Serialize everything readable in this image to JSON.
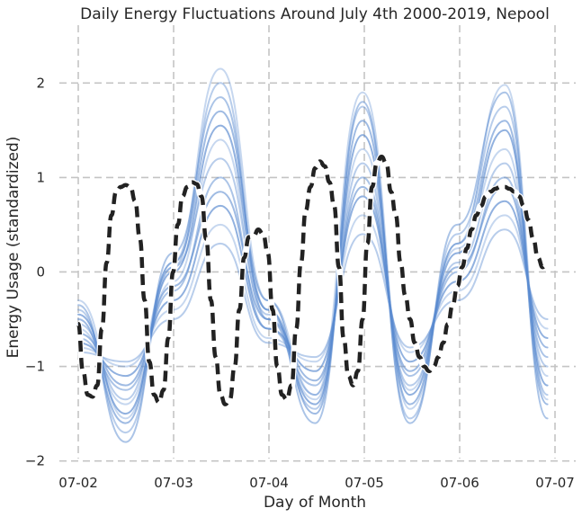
{
  "chart_data": {
    "type": "line",
    "title": "Daily Energy Fluctuations Around July 4th 2000-2019, Nepool",
    "xlabel": "Day of Month",
    "ylabel": "Energy Usage (standardized)",
    "xticks": [
      "07-02",
      "07-03",
      "07-04",
      "07-05",
      "07-06",
      "07-07"
    ],
    "yticks": [
      2,
      1,
      0,
      -1,
      -2
    ],
    "xlim": [
      0,
      5.03
    ],
    "ylim": [
      -2.07,
      2.65
    ],
    "grid": true,
    "colors": {
      "series": "#5b8bd0",
      "mean": "#222222",
      "grid": "#c4c4c4",
      "text": "#262626"
    },
    "mean_series": {
      "style": "dashed",
      "x": [
        0,
        0.05,
        0.1,
        0.15,
        0.2,
        0.25,
        0.3,
        0.35,
        0.4,
        0.45,
        0.5,
        0.55,
        0.6,
        0.65,
        0.7,
        0.75,
        0.8,
        0.85,
        0.9,
        0.95,
        1,
        1.05,
        1.1,
        1.15,
        1.2,
        1.25,
        1.3,
        1.35,
        1.4,
        1.45,
        1.5,
        1.55,
        1.6,
        1.65,
        1.7,
        1.75,
        1.8,
        1.85,
        1.9,
        1.95,
        2,
        2.05,
        2.1,
        2.15,
        2.2,
        2.25,
        2.3,
        2.35,
        2.4,
        2.45,
        2.5,
        2.55,
        2.6,
        2.65,
        2.7,
        2.75,
        2.8,
        2.85,
        2.9,
        2.95,
        3,
        3.05,
        3.1,
        3.15,
        3.2,
        3.25,
        3.3,
        3.35,
        3.4,
        3.45,
        3.5,
        3.55,
        3.6,
        3.65,
        3.7,
        3.75,
        3.8,
        3.85,
        3.9,
        3.95,
        4,
        4.05,
        4.1,
        4.15,
        4.2,
        4.25,
        4.3,
        4.35,
        4.4,
        4.45,
        4.5,
        4.55,
        4.6,
        4.65,
        4.7,
        4.75,
        4.8,
        4.85,
        4.9,
        4.95
      ],
      "y": [
        -0.55,
        -1.05,
        -1.3,
        -1.32,
        -1.2,
        -0.6,
        0.1,
        0.6,
        0.85,
        0.9,
        0.92,
        0.9,
        0.75,
        0.35,
        -0.3,
        -0.95,
        -1.3,
        -1.38,
        -1.25,
        -0.7,
        0.0,
        0.5,
        0.8,
        0.9,
        0.95,
        0.93,
        0.8,
        0.35,
        -0.3,
        -0.9,
        -1.3,
        -1.4,
        -1.35,
        -1.0,
        -0.4,
        0.15,
        0.37,
        0.38,
        0.45,
        0.4,
        0.2,
        -0.4,
        -1.0,
        -1.3,
        -1.35,
        -1.2,
        -0.6,
        0.1,
        0.65,
        0.9,
        1.1,
        1.17,
        1.12,
        0.95,
        0.7,
        0.05,
        -0.7,
        -1.1,
        -1.2,
        -1.05,
        -0.5,
        0.3,
        0.9,
        1.15,
        1.22,
        1.15,
        0.85,
        0.6,
        0.1,
        -0.25,
        -0.5,
        -0.75,
        -0.9,
        -1.0,
        -1.05,
        -1.0,
        -0.9,
        -0.75,
        -0.55,
        -0.35,
        -0.15,
        0.05,
        0.25,
        0.45,
        0.6,
        0.7,
        0.8,
        0.85,
        0.88,
        0.9,
        0.9,
        0.88,
        0.85,
        0.8,
        0.7,
        0.55,
        0.35,
        0.15,
        0.05,
        0.1
      ]
    },
    "series": [
      {
        "x": [
          0,
          0.5,
          1,
          1.5,
          2,
          2.5,
          3,
          3.5,
          4,
          4.5,
          4.95
        ],
        "y": [
          -0.3,
          -1.55,
          0.1,
          2.15,
          -0.3,
          -1.3,
          1.9,
          -1.45,
          0.3,
          1.98,
          -1.35
        ]
      },
      {
        "x": [
          0,
          0.5,
          1,
          1.5,
          2,
          2.5,
          3,
          3.5,
          4,
          4.5,
          4.95
        ],
        "y": [
          -0.4,
          -1.7,
          0.05,
          2.0,
          -0.5,
          -1.45,
          1.75,
          -1.55,
          0.4,
          1.75,
          -1.3
        ]
      },
      {
        "x": [
          0,
          0.5,
          1,
          1.5,
          2,
          2.5,
          3,
          3.5,
          4,
          4.5,
          4.95
        ],
        "y": [
          -0.35,
          -1.8,
          0.2,
          1.85,
          -0.4,
          -1.6,
          1.8,
          -1.6,
          0.5,
          1.9,
          -1.55
        ]
      },
      {
        "x": [
          0,
          0.5,
          1,
          1.5,
          2,
          2.5,
          3,
          3.5,
          4,
          4.5,
          4.95
        ],
        "y": [
          -0.5,
          -1.6,
          0.1,
          1.7,
          -0.3,
          -1.5,
          1.6,
          -1.4,
          0.3,
          1.6,
          -1.4
        ]
      },
      {
        "x": [
          0,
          0.5,
          1,
          1.5,
          2,
          2.5,
          3,
          3.5,
          4,
          4.5,
          4.95
        ],
        "y": [
          -0.45,
          -1.5,
          0.0,
          1.55,
          -0.4,
          -1.4,
          1.45,
          -1.3,
          0.2,
          1.5,
          -1.2
        ]
      },
      {
        "x": [
          0,
          0.5,
          1,
          1.5,
          2,
          2.5,
          3,
          3.5,
          4,
          4.5,
          4.95
        ],
        "y": [
          -0.6,
          -1.4,
          -0.1,
          1.4,
          -0.5,
          -1.35,
          1.3,
          -1.25,
          0.25,
          1.3,
          -1.1
        ]
      },
      {
        "x": [
          0,
          0.5,
          1,
          1.5,
          2,
          2.5,
          3,
          3.5,
          4,
          4.5,
          4.95
        ],
        "y": [
          -0.55,
          -1.35,
          0.05,
          1.2,
          -0.45,
          -1.3,
          1.15,
          -1.2,
          0.1,
          1.15,
          -1.0
        ]
      },
      {
        "x": [
          0,
          0.5,
          1,
          1.5,
          2,
          2.5,
          3,
          3.5,
          4,
          4.5,
          4.95
        ],
        "y": [
          -0.7,
          -1.25,
          -0.2,
          1.0,
          -0.6,
          -1.2,
          1.0,
          -1.1,
          0.0,
          1.0,
          -0.9
        ]
      },
      {
        "x": [
          0,
          0.5,
          1,
          1.5,
          2,
          2.5,
          3,
          3.5,
          4,
          4.5,
          4.95
        ],
        "y": [
          -0.65,
          -1.2,
          -0.15,
          0.85,
          -0.5,
          -1.15,
          0.9,
          -1.05,
          0.05,
          0.9,
          -0.8
        ]
      },
      {
        "x": [
          0,
          0.5,
          1,
          1.5,
          2,
          2.5,
          3,
          3.5,
          4,
          4.5,
          4.95
        ],
        "y": [
          -0.75,
          -1.1,
          -0.3,
          0.7,
          -0.6,
          -1.05,
          0.8,
          -0.95,
          -0.1,
          0.75,
          -0.7
        ]
      },
      {
        "x": [
          0,
          0.5,
          1,
          1.5,
          2,
          2.5,
          3,
          3.5,
          4,
          4.5,
          4.95
        ],
        "y": [
          -0.8,
          -1.0,
          -0.4,
          0.5,
          -0.7,
          -0.95,
          0.6,
          -0.85,
          -0.2,
          0.6,
          -0.6
        ]
      },
      {
        "x": [
          0,
          0.5,
          1,
          1.5,
          2,
          2.5,
          3,
          3.5,
          4,
          4.5,
          4.95
        ],
        "y": [
          -0.85,
          -0.95,
          -0.5,
          0.3,
          -0.75,
          -0.9,
          0.4,
          -0.8,
          -0.3,
          0.45,
          -0.5
        ]
      }
    ]
  }
}
